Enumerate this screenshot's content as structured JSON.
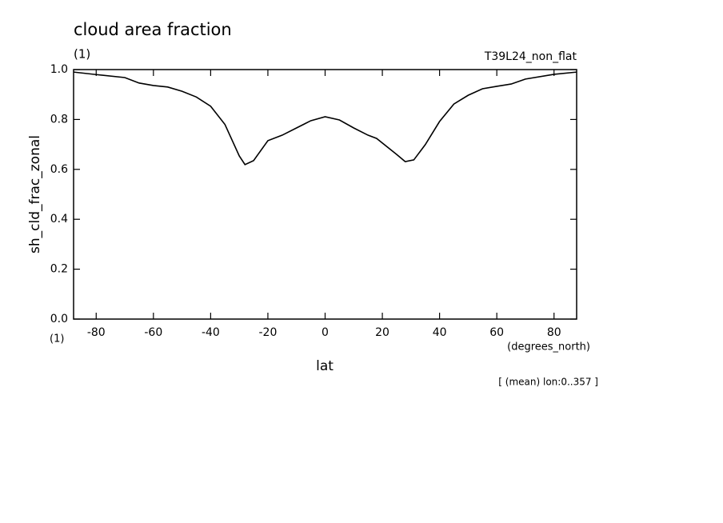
{
  "chart_data": {
    "type": "line",
    "title": "cloud area fraction",
    "subtitle": "(1)",
    "run_label": "T39L24_non_flat",
    "ylabel": "sh_cld_frac_zonal",
    "y_units": "(1)",
    "xlabel": "lat",
    "x_units": "(degrees_north)",
    "annotation": "[ (mean) lon:0..357 ]",
    "x": [
      -87.9,
      -80,
      -70,
      -65,
      -60,
      -55,
      -50,
      -45,
      -40,
      -35,
      -30,
      -28,
      -25,
      -20,
      -15,
      -10,
      -5,
      0,
      5,
      10,
      15,
      18,
      25,
      28,
      31,
      35,
      40,
      45,
      50,
      55,
      60,
      65,
      70,
      80,
      87.9
    ],
    "series": [
      {
        "name": "sh_cld_frac_zonal",
        "color": "#000000",
        "values": [
          0.99,
          0.98,
          0.968,
          0.946,
          0.936,
          0.93,
          0.913,
          0.89,
          0.853,
          0.78,
          0.654,
          0.619,
          0.635,
          0.715,
          0.737,
          0.766,
          0.795,
          0.811,
          0.798,
          0.766,
          0.737,
          0.724,
          0.66,
          0.631,
          0.638,
          0.699,
          0.792,
          0.862,
          0.897,
          0.923,
          0.933,
          0.942,
          0.962,
          0.981,
          0.99
        ]
      }
    ],
    "xlim": [
      -87.9,
      87.9
    ],
    "ylim": [
      0,
      1
    ],
    "xticks": [
      -80,
      -60,
      -40,
      -20,
      0,
      20,
      40,
      60,
      80
    ],
    "yticks": [
      {
        "value": 0,
        "label": "0.0"
      },
      0.2,
      0.4,
      0.6,
      0.8,
      {
        "value": 1,
        "label": "1.0"
      }
    ],
    "grid": false
  }
}
